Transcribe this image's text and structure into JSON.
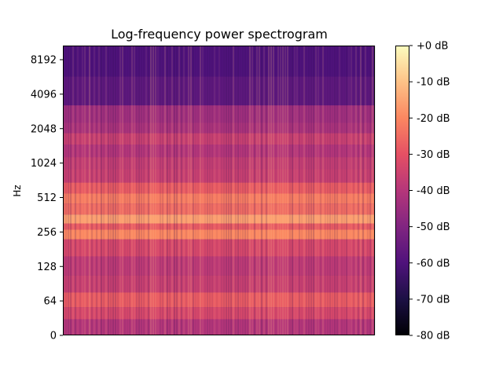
{
  "chart_data": {
    "type": "heatmap",
    "title": "Log-frequency power spectrogram",
    "xlabel": "",
    "ylabel": "Hz",
    "y_scale": "log2",
    "yticks": [
      "0",
      "64",
      "128",
      "256",
      "512",
      "1024",
      "2048",
      "4096",
      "8192"
    ],
    "colormap": "magma",
    "colorbar": {
      "range_db": [
        -80,
        0
      ],
      "ticks": [
        "+0 dB",
        "-10 dB",
        "-20 dB",
        "-30 dB",
        "-40 dB",
        "-50 dB",
        "-60 dB",
        "-70 dB",
        "-80 dB"
      ]
    },
    "bands": [
      {
        "y": 8192,
        "db": -60
      },
      {
        "y": 4096,
        "db": -57
      },
      {
        "y": 2600,
        "db": -44
      },
      {
        "y": 2048,
        "db": -42
      },
      {
        "y": 1700,
        "db": -36
      },
      {
        "y": 1300,
        "db": -40
      },
      {
        "y": 1024,
        "db": -37
      },
      {
        "y": 800,
        "db": -36
      },
      {
        "y": 600,
        "db": -28
      },
      {
        "y": 512,
        "db": -22
      },
      {
        "y": 400,
        "db": -25
      },
      {
        "y": 330,
        "db": -16
      },
      {
        "y": 280,
        "db": -28
      },
      {
        "y": 256,
        "db": -20
      },
      {
        "y": 190,
        "db": -33
      },
      {
        "y": 128,
        "db": -38
      },
      {
        "y": 90,
        "db": -36
      },
      {
        "y": 64,
        "db": -28
      },
      {
        "y": 40,
        "db": -33
      },
      {
        "y": 20,
        "db": -40
      }
    ]
  }
}
